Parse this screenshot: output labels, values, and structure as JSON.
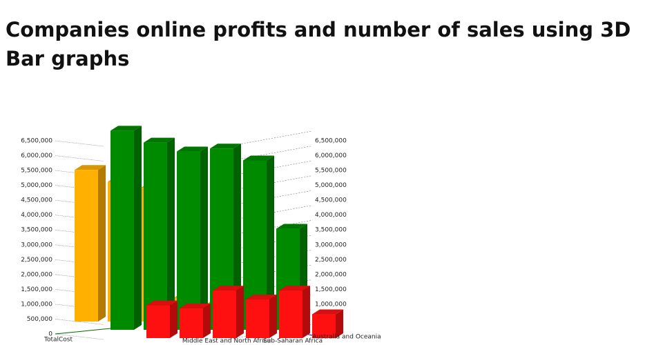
{
  "chart_data": {
    "type": "bar3d",
    "title": "Companies online profits and number of sales using 3D Bar graphs",
    "categories": [
      null,
      null,
      "Middle East and North Africa",
      null,
      "Sub-Saharan Africa",
      "Australia and Oceania"
    ],
    "series": [
      {
        "name": "TotalCost",
        "color": "#ffb000",
        "values": [
          5100000,
          4700000,
          4500000,
          800000,
          600000,
          300000
        ]
      },
      {
        "name": null,
        "color": "#008a00",
        "values": [
          6700000,
          6300000,
          6000000,
          6100000,
          5700000,
          3400000
        ]
      },
      {
        "name": null,
        "color": "#ff1010",
        "values": [
          1100000,
          1000000,
          1600000,
          1300000,
          1600000,
          800000
        ]
      }
    ],
    "ylim": [
      0,
      6500000
    ],
    "yticks": [
      0,
      {
        "value": 500000,
        "label": "500,000"
      },
      {
        "value": 1000000,
        "label": "1,000,000"
      },
      {
        "value": 1500000,
        "label": "1,500,000"
      },
      {
        "value": 2000000,
        "label": "2,000,000"
      },
      {
        "value": 2500000,
        "label": "2,500,000"
      },
      {
        "value": 3000000,
        "label": "3,000,000"
      },
      {
        "value": 3500000,
        "label": "3,500,000"
      },
      {
        "value": 4000000,
        "label": "4,000,000"
      },
      {
        "value": 4500000,
        "label": "4,500,000"
      },
      {
        "value": 5000000,
        "label": "5,000,000"
      },
      {
        "value": 5500000,
        "label": "5,500,000"
      },
      {
        "value": 6000000,
        "label": "6,000,000"
      },
      {
        "value": 6500000,
        "label": "6,500,000"
      }
    ],
    "grid": true
  }
}
